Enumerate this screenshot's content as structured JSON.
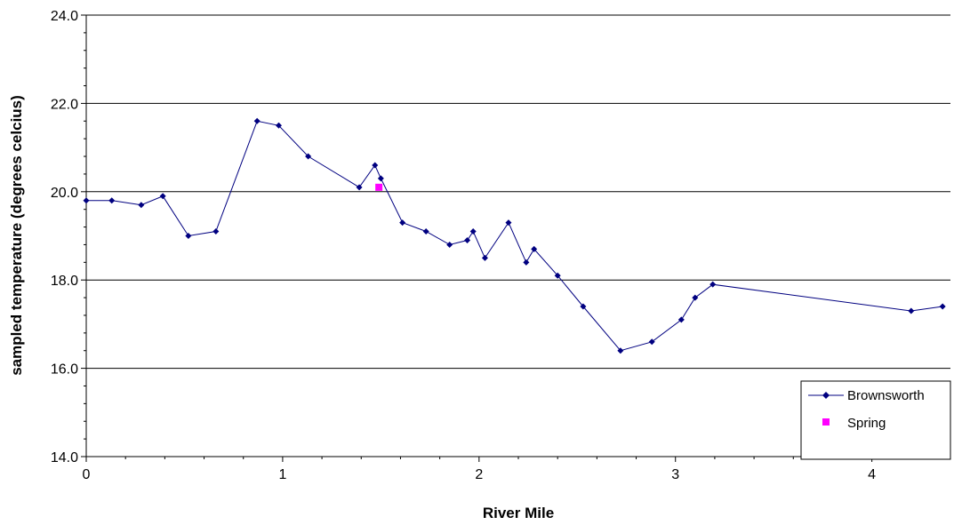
{
  "chart_data": {
    "type": "line",
    "title": "",
    "xlabel": "River Mile",
    "ylabel": "sampled temperature (degrees celcius)",
    "xlim": [
      0,
      4.4
    ],
    "ylim": [
      14.0,
      24.0
    ],
    "x_ticks": [
      0,
      1,
      2,
      3,
      4
    ],
    "x_tick_labels": [
      "0",
      "1",
      "2",
      "3",
      "4"
    ],
    "y_ticks": [
      14,
      16,
      18,
      20,
      22,
      24
    ],
    "y_tick_labels": [
      "14.0",
      "16.0",
      "18.0",
      "20.0",
      "22.0",
      "24.0"
    ],
    "grid": "horizontal major gridlines",
    "legend": "inside bottom-right",
    "series": [
      {
        "name": "Brownsworth",
        "color": "#000080",
        "marker": "diamond",
        "line": true,
        "x": [
          0,
          0.13,
          0.28,
          0.39,
          0.52,
          0.66,
          0.87,
          0.98,
          1.13,
          1.39,
          1.47,
          1.5,
          1.61,
          1.73,
          1.85,
          1.94,
          1.97,
          2.03,
          2.15,
          2.24,
          2.28,
          2.4,
          2.53,
          2.72,
          2.88,
          3.03,
          3.1,
          3.19,
          4.2,
          4.36
        ],
        "y": [
          19.8,
          19.8,
          19.7,
          19.9,
          19.0,
          19.1,
          21.6,
          21.5,
          20.8,
          20.1,
          20.6,
          20.3,
          19.3,
          19.1,
          18.8,
          18.9,
          19.1,
          18.5,
          19.3,
          18.4,
          18.7,
          18.1,
          17.4,
          16.4,
          16.6,
          17.1,
          17.6,
          17.9,
          17.3,
          17.4
        ]
      },
      {
        "name": "Spring",
        "color": "#ff00ff",
        "marker": "square",
        "line": false,
        "x": [
          1.49
        ],
        "y": [
          20.1
        ]
      }
    ]
  }
}
